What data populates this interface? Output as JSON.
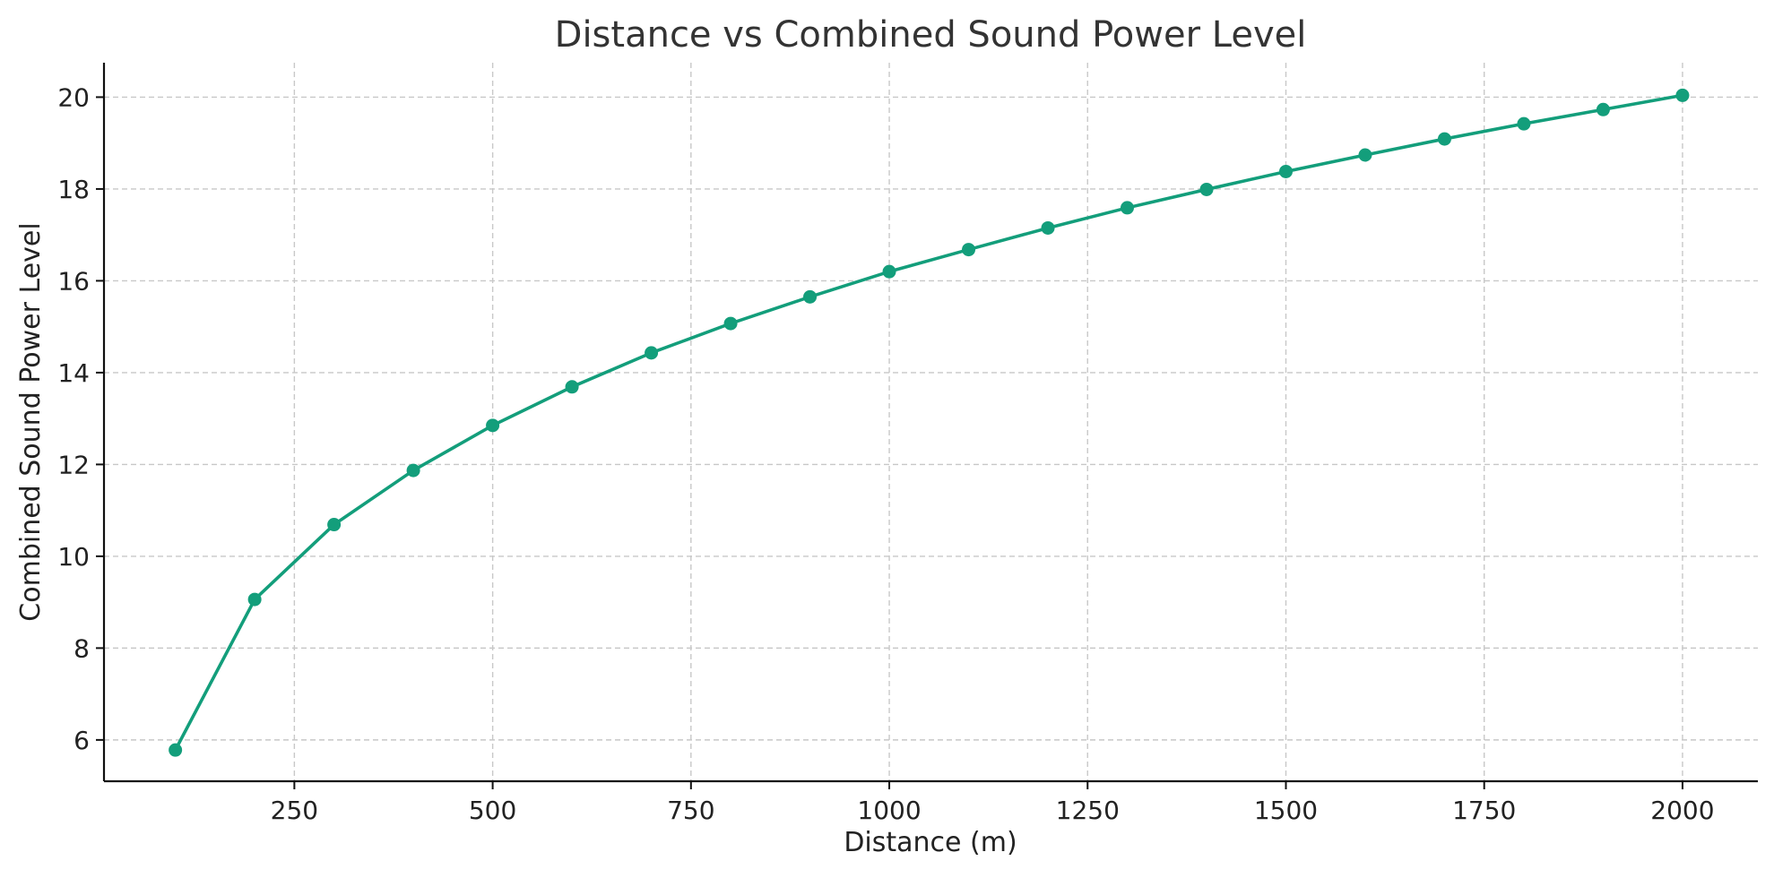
{
  "chart_data": {
    "type": "line",
    "title": "Distance vs Combined Sound Power Level",
    "xlabel": "Distance (m)",
    "ylabel": "Combined Sound Power Level",
    "xlim": [
      10,
      2095
    ],
    "ylim": [
      5.1,
      20.75
    ],
    "xticks": [
      250,
      500,
      750,
      1000,
      1250,
      1500,
      1750,
      2000
    ],
    "yticks": [
      6,
      8,
      10,
      12,
      14,
      16,
      18,
      20
    ],
    "grid": true,
    "series_color": "#139e7b",
    "series": [
      {
        "x": [
          100,
          200,
          300,
          400,
          500,
          600,
          700,
          800,
          900,
          1000,
          1100,
          1200,
          1300,
          1400,
          1500,
          1600,
          1700,
          1800,
          1900,
          2000
        ],
        "values": [
          5.78,
          9.06,
          10.69,
          11.87,
          12.85,
          13.69,
          14.43,
          15.07,
          15.65,
          16.2,
          16.68,
          17.15,
          17.59,
          17.99,
          18.38,
          18.74,
          19.09,
          19.42,
          19.73,
          20.04
        ]
      }
    ]
  }
}
